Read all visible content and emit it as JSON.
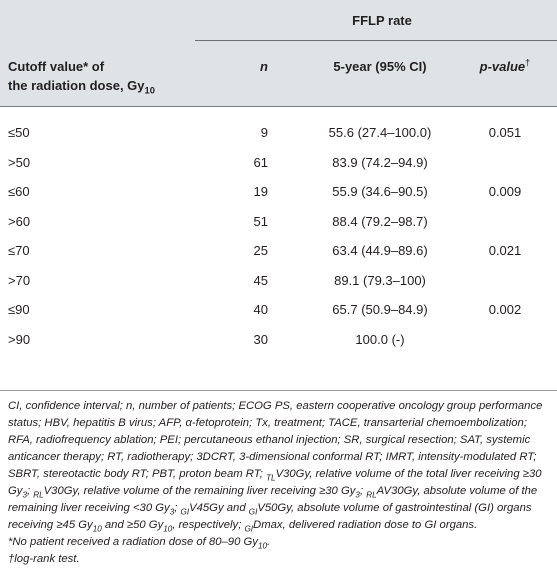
{
  "header": {
    "group_label": "FFLP rate",
    "col_label_line1": "Cutoff value* of",
    "col_label_line2": "the radiation dose, Gy",
    "col_label_sub": "10",
    "col_n": "n",
    "col_rate": "5-year (95% CI)",
    "col_p": "p-value",
    "col_p_sup": "†"
  },
  "rows": [
    {
      "cutoff": "≤50",
      "n": "9",
      "rate": "55.6 (27.4–100.0)",
      "p": "0.051"
    },
    {
      "cutoff": ">50",
      "n": "61",
      "rate": "83.9 (74.2–94.9)",
      "p": ""
    },
    {
      "cutoff": "≤60",
      "n": "19",
      "rate": "55.9 (34.6–90.5)",
      "p": "0.009"
    },
    {
      "cutoff": ">60",
      "n": "51",
      "rate": "88.4 (79.2–98.7)",
      "p": ""
    },
    {
      "cutoff": "≤70",
      "n": "25",
      "rate": "63.4 (44.9–89.6)",
      "p": "0.021"
    },
    {
      "cutoff": ">70",
      "n": "45",
      "rate": "89.1 (79.3–100)",
      "p": ""
    },
    {
      "cutoff": "≤90",
      "n": "40",
      "rate": "65.7 (50.9–84.9)",
      "p": "0.002"
    },
    {
      "cutoff": ">90",
      "n": "30",
      "rate": "100.0 (-)",
      "p": ""
    }
  ],
  "footnotes": {
    "abbrev_1": "CI, confidence interval; n, number of patients; ECOG PS, eastern cooperative oncology group performance status; HBV, hepatitis B virus; AFP, α-fetoprotein; Tx, treatment; TACE, transarterial chemoembolization; RFA, radiofrequency ablation; PEI; percutaneous ethanol injection; SR, surgical resection; SAT, systemic anticancer therapy; RT, radiotherapy; 3DCRT, 3-dimensional conformal RT; IMRT, intensity-modulated RT; SBRT, stereotactic body RT; PBT, proton beam RT; ",
    "tl_sub": "TL",
    "tl_text": "V30Gy, relative volume of the total liver receiving ≥30 Gy",
    "g3": "3",
    "rl_sub": "RL",
    "rl_text": "V30Gy, relative volume of the remaining liver receiving ≥30 Gy",
    "rl_sub2": "RL",
    "rl_av_text": "AV30Gy, absolute volume of the remaining liver receiving <30 Gy",
    "gi_sub": "GI",
    "gi_text1": "V45Gy and ",
    "gi_sub2": "GI",
    "gi_text2": "V50Gy, absolute volume of gastrointestinal (GI) organs receiving ≥45 Gy",
    "ten": "10",
    "and_text": " and ≥50 Gy",
    "respectively": ", respectively; ",
    "gi_sub3": "GI",
    "dmax_text": "Dmax, delivered radiation dose to GI organs.",
    "star_note_a": "*No patient received a radiation dose of 80–90 Gy",
    "star_note_sub": "10",
    "star_note_b": ".",
    "dagger_note": "†log-rank test."
  }
}
